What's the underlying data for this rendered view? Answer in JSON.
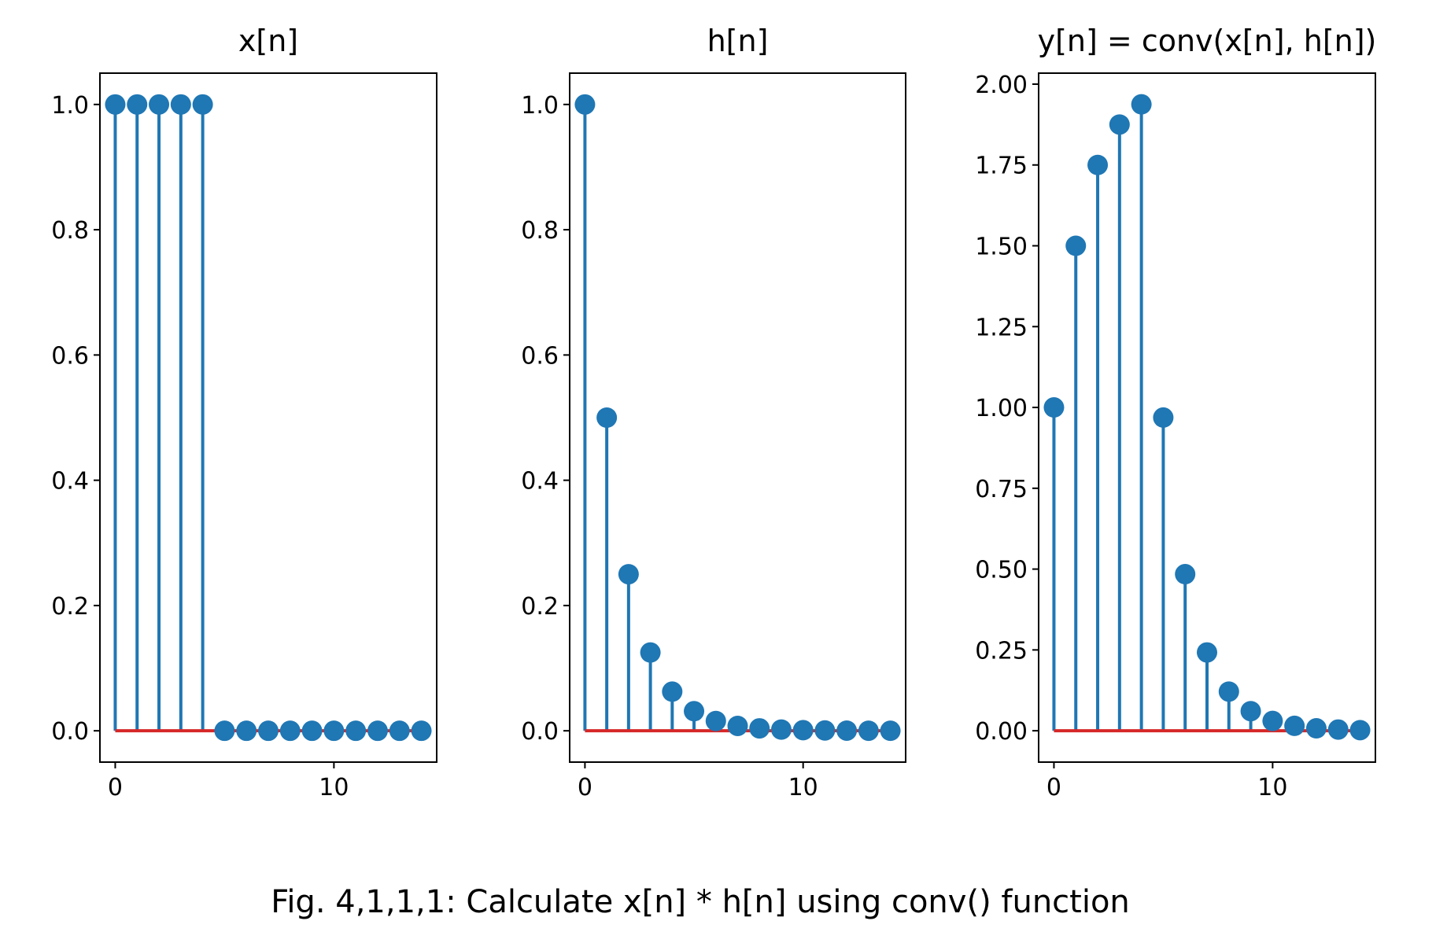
{
  "figure": {
    "caption": "Fig. 4,1,1,1: Calculate x[n] * h[n] using conv() function"
  },
  "colors": {
    "marker": "#1f77b4",
    "baseline": "#d62728",
    "axes": "#000000",
    "background": "#ffffff"
  },
  "chart_data": [
    {
      "type": "stem",
      "title": "x[n]",
      "xlabel": "",
      "ylabel": "",
      "x": [
        0,
        1,
        2,
        3,
        4,
        5,
        6,
        7,
        8,
        9,
        10,
        11,
        12,
        13,
        14
      ],
      "values": [
        1,
        1,
        1,
        1,
        1,
        0,
        0,
        0,
        0,
        0,
        0,
        0,
        0,
        0,
        0
      ],
      "xlim": [
        -0.7,
        14.7
      ],
      "ylim": [
        -0.05,
        1.05
      ],
      "xticks": [
        0,
        10
      ],
      "xtick_labels": [
        "0",
        "10"
      ],
      "yticks": [
        0,
        0.2,
        0.4,
        0.6,
        0.8,
        1.0
      ],
      "ytick_labels": [
        "0.0",
        "0.2",
        "0.4",
        "0.6",
        "0.8",
        "1.0"
      ],
      "baseline": 0,
      "grid": false
    },
    {
      "type": "stem",
      "title": "h[n]",
      "xlabel": "",
      "ylabel": "",
      "x": [
        0,
        1,
        2,
        3,
        4,
        5,
        6,
        7,
        8,
        9,
        10,
        11,
        12,
        13,
        14
      ],
      "values": [
        1,
        0.5,
        0.25,
        0.125,
        0.0625,
        0.03125,
        0.015625,
        0.0078125,
        0.00390625,
        0.001953125,
        0.0009765625,
        0.00048828125,
        0.000244140625,
        0.0001220703125,
        6.103515625e-05
      ],
      "xlim": [
        -0.7,
        14.7
      ],
      "ylim": [
        -0.05,
        1.05
      ],
      "xticks": [
        0,
        10
      ],
      "xtick_labels": [
        "0",
        "10"
      ],
      "yticks": [
        0,
        0.2,
        0.4,
        0.6,
        0.8,
        1.0
      ],
      "ytick_labels": [
        "0.0",
        "0.2",
        "0.4",
        "0.6",
        "0.8",
        "1.0"
      ],
      "baseline": 0,
      "grid": false
    },
    {
      "type": "stem",
      "title": "y[n] = conv(x[n], h[n])",
      "xlabel": "",
      "ylabel": "",
      "x": [
        0,
        1,
        2,
        3,
        4,
        5,
        6,
        7,
        8,
        9,
        10,
        11,
        12,
        13,
        14
      ],
      "values": [
        1,
        1.5,
        1.75,
        1.875,
        1.9375,
        0.96875,
        0.484375,
        0.2421875,
        0.12109375,
        0.060546875,
        0.0302734375,
        0.01513671875,
        0.007568359375,
        0.0037841796875,
        0.00189208984375
      ],
      "xlim": [
        -0.7,
        14.7
      ],
      "ylim": [
        -0.097,
        2.034
      ],
      "xticks": [
        0,
        10
      ],
      "xtick_labels": [
        "0",
        "10"
      ],
      "yticks": [
        0,
        0.25,
        0.5,
        0.75,
        1.0,
        1.25,
        1.5,
        1.75,
        2.0
      ],
      "ytick_labels": [
        "0.00",
        "0.25",
        "0.50",
        "0.75",
        "1.00",
        "1.25",
        "1.50",
        "1.75",
        "2.00"
      ],
      "baseline": 0,
      "grid": false
    }
  ]
}
